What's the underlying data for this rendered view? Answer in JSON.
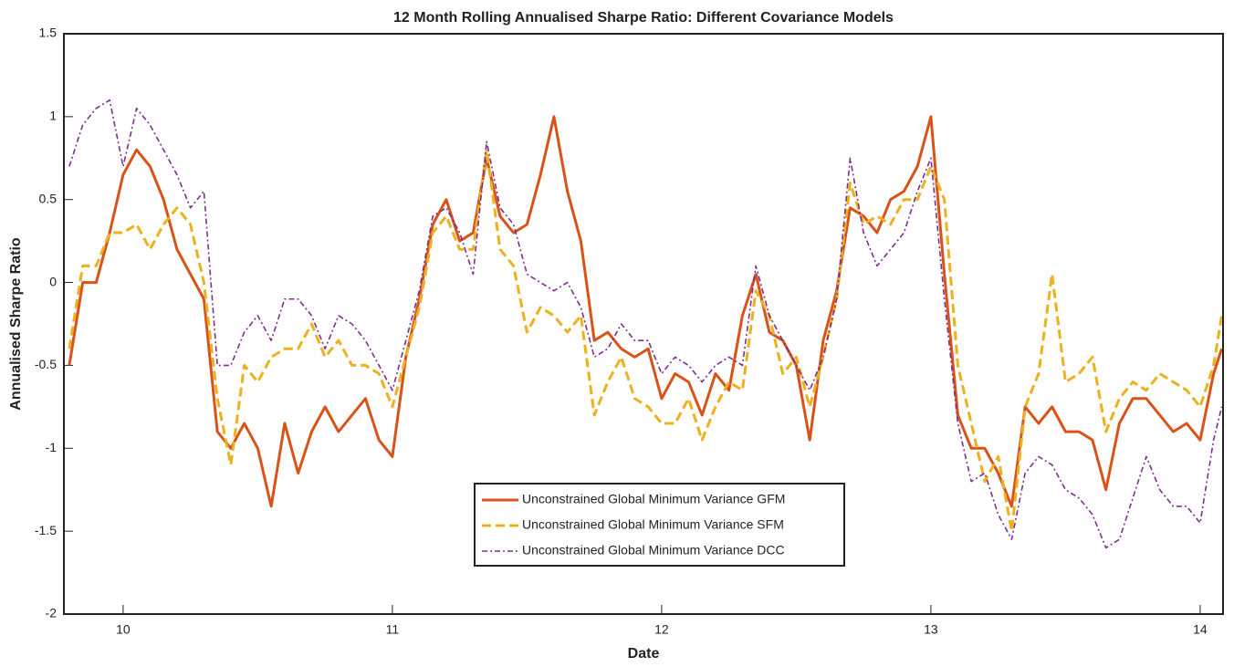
{
  "chart_data": {
    "type": "line",
    "title": "12 Month Rolling Annualised Sharpe Ratio: Different Covariance Models",
    "x_label": "Date",
    "y_label": "Annualised Sharpe Ratio",
    "xlim": [
      9.78,
      14.085
    ],
    "ylim": [
      -2,
      1.5
    ],
    "xticks": [
      10,
      11,
      12,
      13,
      14
    ],
    "yticks": [
      -2,
      -1.5,
      -1,
      -0.5,
      0,
      0.5,
      1,
      1.5
    ],
    "grid": false,
    "legend_position": "lower center",
    "x": [
      9.8,
      9.85,
      9.9,
      9.95,
      10,
      10.05,
      10.1,
      10.15,
      10.2,
      10.25,
      10.3,
      10.35,
      10.4,
      10.45,
      10.5,
      10.55,
      10.6,
      10.65,
      10.7,
      10.75,
      10.8,
      10.85,
      10.9,
      10.95,
      11,
      11.05,
      11.1,
      11.15,
      11.2,
      11.25,
      11.3,
      11.35,
      11.4,
      11.45,
      11.5,
      11.55,
      11.6,
      11.65,
      11.7,
      11.75,
      11.8,
      11.85,
      11.9,
      11.95,
      12,
      12.05,
      12.1,
      12.15,
      12.2,
      12.25,
      12.3,
      12.35,
      12.4,
      12.45,
      12.5,
      12.55,
      12.6,
      12.65,
      12.7,
      12.75,
      12.8,
      12.85,
      12.9,
      12.95,
      13,
      13.05,
      13.1,
      13.15,
      13.2,
      13.25,
      13.3,
      13.35,
      13.4,
      13.45,
      13.5,
      13.55,
      13.6,
      13.65,
      13.7,
      13.75,
      13.8,
      13.85,
      13.9,
      13.95,
      14,
      14.05,
      14.08
    ],
    "series": [
      {
        "name": "Unconstrained Global Minimum Variance GFM",
        "color": "#d95319",
        "line_style": "solid",
        "values": [
          -0.5,
          0.0,
          0.0,
          0.3,
          0.65,
          0.8,
          0.7,
          0.5,
          0.2,
          0.05,
          -0.1,
          -0.9,
          -1.0,
          -0.85,
          -1.0,
          -1.35,
          -0.85,
          -1.15,
          -0.9,
          -0.75,
          -0.9,
          -0.8,
          -0.7,
          -0.95,
          -1.05,
          -0.45,
          -0.1,
          0.35,
          0.5,
          0.25,
          0.3,
          0.75,
          0.4,
          0.3,
          0.35,
          0.65,
          1.0,
          0.55,
          0.25,
          -0.35,
          -0.3,
          -0.4,
          -0.45,
          -0.4,
          -0.7,
          -0.55,
          -0.6,
          -0.8,
          -0.55,
          -0.65,
          -0.2,
          0.05,
          -0.3,
          -0.35,
          -0.5,
          -0.95,
          -0.35,
          -0.05,
          0.45,
          0.4,
          0.3,
          0.5,
          0.55,
          0.7,
          1.0,
          0.05,
          -0.8,
          -1.0,
          -1.0,
          -1.15,
          -1.35,
          -0.75,
          -0.85,
          -0.75,
          -0.9,
          -0.9,
          -0.95,
          -1.25,
          -0.85,
          -0.7,
          -0.7,
          -0.8,
          -0.9,
          -0.85,
          -0.95,
          -0.55,
          -0.4
        ]
      },
      {
        "name": "Unconstrained Global Minimum Variance SFM",
        "color": "#edb120",
        "line_style": "dashed",
        "values": [
          -0.4,
          0.1,
          0.1,
          0.3,
          0.3,
          0.35,
          0.2,
          0.35,
          0.45,
          0.35,
          0.0,
          -0.7,
          -1.1,
          -0.5,
          -0.6,
          -0.45,
          -0.4,
          -0.4,
          -0.25,
          -0.45,
          -0.35,
          -0.5,
          -0.5,
          -0.55,
          -0.75,
          -0.45,
          -0.15,
          0.3,
          0.4,
          0.2,
          0.2,
          0.8,
          0.2,
          0.1,
          -0.3,
          -0.15,
          -0.2,
          -0.3,
          -0.2,
          -0.8,
          -0.6,
          -0.45,
          -0.7,
          -0.75,
          -0.85,
          -0.85,
          -0.7,
          -0.95,
          -0.75,
          -0.6,
          -0.65,
          -0.05,
          -0.2,
          -0.55,
          -0.45,
          -0.75,
          -0.45,
          -0.1,
          0.6,
          0.35,
          0.4,
          0.35,
          0.5,
          0.5,
          0.7,
          0.5,
          -0.5,
          -0.85,
          -1.2,
          -1.05,
          -1.5,
          -0.75,
          -0.55,
          0.05,
          -0.6,
          -0.55,
          -0.45,
          -0.9,
          -0.7,
          -0.6,
          -0.65,
          -0.55,
          -0.6,
          -0.65,
          -0.75,
          -0.5,
          -0.2
        ]
      },
      {
        "name": "Unconstrained Global Minimum Variance DCC",
        "color": "#7e2f8e",
        "line_style": "dashdot",
        "values": [
          0.7,
          0.95,
          1.05,
          1.1,
          0.7,
          1.05,
          0.95,
          0.8,
          0.65,
          0.45,
          0.55,
          -0.5,
          -0.5,
          -0.3,
          -0.2,
          -0.35,
          -0.1,
          -0.1,
          -0.2,
          -0.4,
          -0.2,
          -0.25,
          -0.35,
          -0.5,
          -0.65,
          -0.35,
          -0.05,
          0.4,
          0.45,
          0.3,
          0.05,
          0.85,
          0.45,
          0.35,
          0.05,
          0.0,
          -0.05,
          0.0,
          -0.15,
          -0.45,
          -0.4,
          -0.25,
          -0.35,
          -0.35,
          -0.55,
          -0.45,
          -0.5,
          -0.6,
          -0.5,
          -0.45,
          -0.5,
          0.1,
          -0.2,
          -0.35,
          -0.5,
          -0.65,
          -0.45,
          -0.1,
          0.75,
          0.3,
          0.1,
          0.2,
          0.3,
          0.55,
          0.75,
          -0.1,
          -0.85,
          -1.2,
          -1.15,
          -1.4,
          -1.55,
          -1.15,
          -1.05,
          -1.1,
          -1.25,
          -1.3,
          -1.4,
          -1.6,
          -1.55,
          -1.3,
          -1.05,
          -1.25,
          -1.35,
          -1.35,
          -1.45,
          -0.95,
          -0.75
        ]
      }
    ]
  }
}
